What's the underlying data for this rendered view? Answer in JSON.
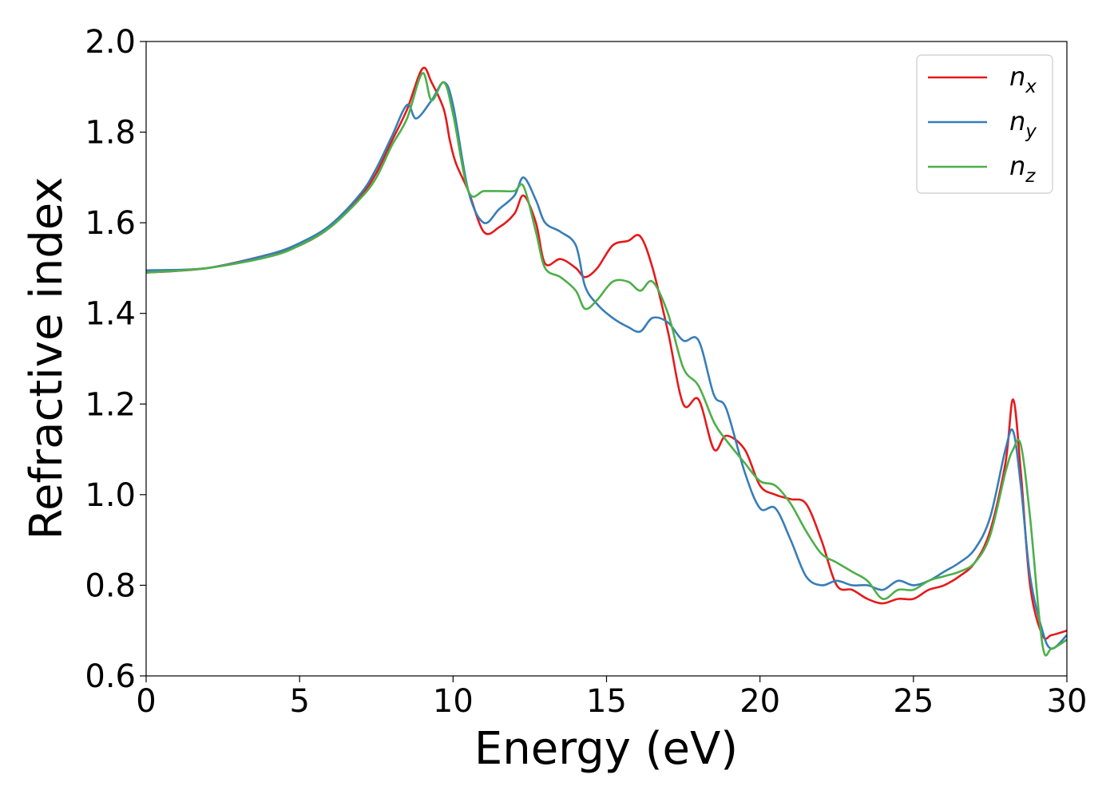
{
  "chart_data": {
    "type": "line",
    "title": "",
    "xlabel": "Energy (eV)",
    "ylabel": "Refractive index",
    "xlim": [
      0,
      30
    ],
    "ylim": [
      0.6,
      2.0
    ],
    "xticks": [
      "0",
      "5",
      "10",
      "15",
      "20",
      "25",
      "30"
    ],
    "yticks": [
      "0.6",
      "0.8",
      "1.0",
      "1.2",
      "1.4",
      "1.6",
      "1.8",
      "2.0"
    ],
    "grid": false,
    "legend_position": "top-right",
    "series": [
      {
        "name": "n",
        "subscript": "x",
        "color": "#e41a1c",
        "x": [
          0,
          2,
          4,
          5,
          6,
          7,
          7.5,
          8,
          8.5,
          9,
          9.3,
          9.7,
          9.9,
          10.1,
          10.5,
          11,
          11.5,
          12,
          12.3,
          12.7,
          13,
          13.5,
          14,
          14.3,
          14.7,
          15.2,
          15.7,
          16.1,
          16.5,
          17,
          17.5,
          18,
          18.5,
          18.9,
          19.5,
          20,
          20.5,
          21,
          21.5,
          22,
          22.5,
          23,
          23.5,
          24,
          24.5,
          25,
          25.5,
          26,
          26.5,
          27,
          27.5,
          28,
          28.25,
          28.5,
          28.8,
          29.2,
          29.5,
          30
        ],
        "y": [
          1.49,
          1.5,
          1.53,
          1.55,
          1.59,
          1.66,
          1.71,
          1.78,
          1.85,
          1.94,
          1.91,
          1.85,
          1.78,
          1.73,
          1.67,
          1.58,
          1.59,
          1.62,
          1.66,
          1.6,
          1.51,
          1.52,
          1.5,
          1.48,
          1.5,
          1.55,
          1.56,
          1.57,
          1.5,
          1.36,
          1.2,
          1.21,
          1.1,
          1.13,
          1.1,
          1.02,
          1.0,
          0.99,
          0.98,
          0.9,
          0.8,
          0.79,
          0.77,
          0.76,
          0.77,
          0.77,
          0.79,
          0.8,
          0.82,
          0.85,
          0.92,
          1.07,
          1.21,
          1.05,
          0.8,
          0.69,
          0.69,
          0.7
        ]
      },
      {
        "name": "n",
        "subscript": "y",
        "color": "#377eb8",
        "x": [
          0,
          2,
          4,
          5,
          6,
          7,
          7.5,
          8,
          8.5,
          8.8,
          9.3,
          9.7,
          10,
          10.5,
          11,
          11.5,
          12,
          12.3,
          12.7,
          13,
          13.5,
          14,
          14.3,
          14.7,
          15.2,
          15.7,
          16.1,
          16.5,
          17,
          17.5,
          18,
          18.5,
          18.9,
          19.5,
          20,
          20.5,
          21,
          21.5,
          22,
          22.5,
          23,
          23.5,
          24,
          24.5,
          25,
          25.5,
          26,
          26.5,
          27,
          27.5,
          28,
          28.25,
          28.5,
          28.8,
          29.2,
          29.5,
          30
        ],
        "y": [
          1.495,
          1.5,
          1.53,
          1.555,
          1.595,
          1.665,
          1.72,
          1.79,
          1.86,
          1.83,
          1.87,
          1.91,
          1.86,
          1.67,
          1.6,
          1.63,
          1.66,
          1.7,
          1.65,
          1.6,
          1.58,
          1.55,
          1.46,
          1.42,
          1.39,
          1.37,
          1.36,
          1.39,
          1.38,
          1.34,
          1.34,
          1.22,
          1.19,
          1.05,
          0.97,
          0.97,
          0.9,
          0.82,
          0.8,
          0.81,
          0.8,
          0.8,
          0.79,
          0.81,
          0.8,
          0.81,
          0.83,
          0.85,
          0.88,
          0.95,
          1.1,
          1.14,
          1.02,
          0.82,
          0.7,
          0.66,
          0.69
        ]
      },
      {
        "name": "n",
        "subscript": "z",
        "color": "#4daf4a",
        "x": [
          0,
          2,
          4,
          5,
          6,
          7,
          7.5,
          8,
          8.5,
          9,
          9.3,
          9.7,
          10,
          10.5,
          11,
          11.5,
          12,
          12.3,
          12.7,
          13,
          13.5,
          14,
          14.3,
          14.7,
          15.2,
          15.7,
          16.1,
          16.5,
          17,
          17.5,
          18,
          18.5,
          18.9,
          19.5,
          20,
          20.5,
          21,
          21.5,
          22,
          22.5,
          23,
          23.5,
          24,
          24.5,
          25,
          25.5,
          26,
          26.5,
          27,
          27.5,
          28,
          28.25,
          28.5,
          28.8,
          29.2,
          29.5,
          30
        ],
        "y": [
          1.49,
          1.5,
          1.525,
          1.55,
          1.59,
          1.655,
          1.7,
          1.77,
          1.83,
          1.93,
          1.87,
          1.91,
          1.84,
          1.67,
          1.67,
          1.67,
          1.67,
          1.68,
          1.58,
          1.5,
          1.48,
          1.45,
          1.41,
          1.43,
          1.47,
          1.47,
          1.45,
          1.47,
          1.4,
          1.28,
          1.24,
          1.16,
          1.12,
          1.07,
          1.03,
          1.02,
          0.98,
          0.92,
          0.87,
          0.85,
          0.83,
          0.81,
          0.77,
          0.79,
          0.79,
          0.81,
          0.82,
          0.83,
          0.85,
          0.91,
          1.05,
          1.1,
          1.11,
          0.95,
          0.67,
          0.66,
          0.68
        ]
      }
    ]
  }
}
